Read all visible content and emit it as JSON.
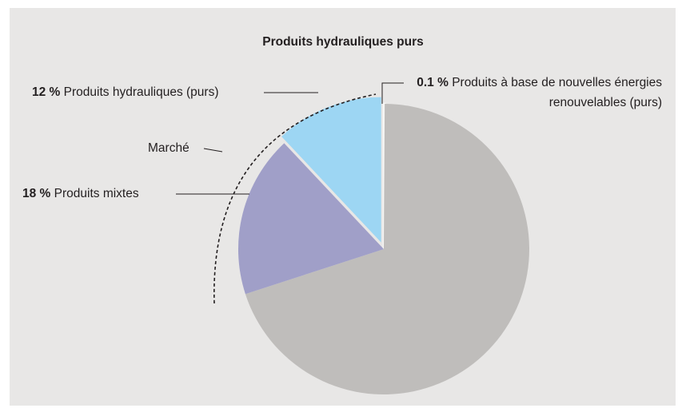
{
  "chart_data": {
    "type": "pie",
    "title": "Produits hydrauliques purs",
    "categories": [
      "Produits à base de nouvelles énergies renouvelables (purs)",
      null,
      "Produits mixtes",
      "Produits hydrauliques (purs)"
    ],
    "values": [
      0.1,
      69.9,
      18,
      12
    ],
    "value_labels": [
      "0.1 %",
      null,
      "18 %",
      "12 %"
    ],
    "colors": [
      "#f6f6f4",
      "#bfbdbb",
      "#a09fc8",
      "#9dd6f3"
    ],
    "exploded": [
      false,
      false,
      false,
      true
    ],
    "annotations": [
      "Marché"
    ]
  }
}
